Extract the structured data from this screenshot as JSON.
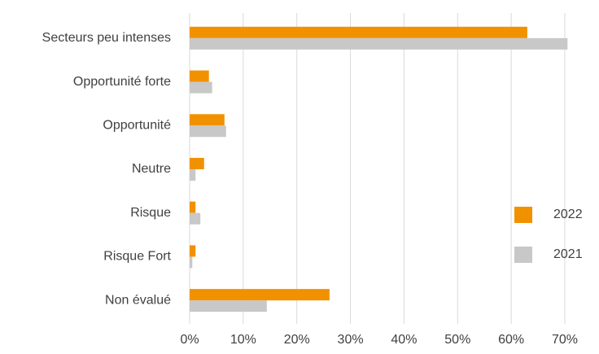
{
  "chart_data": {
    "type": "hbar",
    "categories": [
      "Secteurs peu intenses",
      "Opportunité forte",
      "Opportunité",
      "Neutre",
      "Risque",
      "Risque Fort",
      "Non évalué"
    ],
    "series": [
      {
        "name": "2022",
        "color": "#f29100",
        "values": [
          63,
          3.6,
          6.5,
          2.7,
          1.1,
          1.1,
          26.1
        ]
      },
      {
        "name": "2021",
        "color": "#c8c8c8",
        "values": [
          70.5,
          4.2,
          6.8,
          1.1,
          2.0,
          0.5,
          14.4
        ]
      }
    ],
    "xlim": [
      0,
      70
    ],
    "xticks": [
      {
        "value": 0,
        "label": "0%"
      },
      {
        "value": 10,
        "label": "10%"
      },
      {
        "value": 20,
        "label": "20%"
      },
      {
        "value": 30,
        "label": "30%"
      },
      {
        "value": 40,
        "label": "40%"
      },
      {
        "value": 50,
        "label": "50%"
      },
      {
        "value": 60,
        "label": "60%"
      },
      {
        "value": 70,
        "label": "70%"
      }
    ],
    "grid": true,
    "legend": "right"
  }
}
